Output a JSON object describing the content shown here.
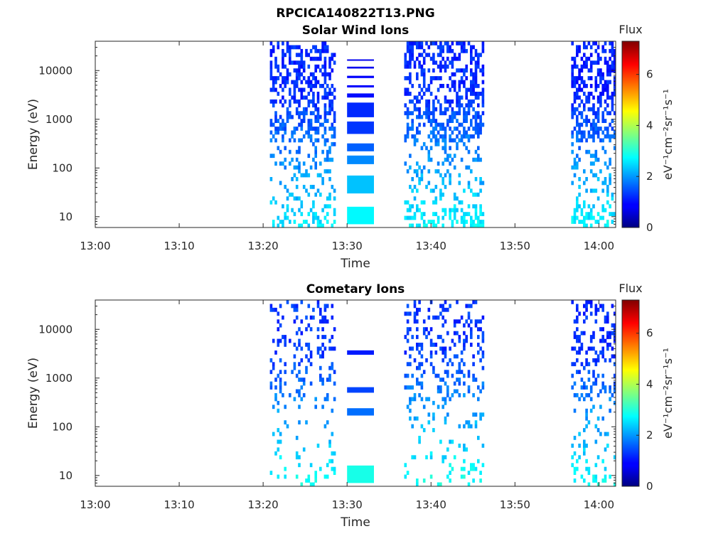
{
  "figure": {
    "filename_title": "RPCICA140822T13.PNG"
  },
  "chart_data": [
    {
      "type": "heatmap",
      "title": "Solar Wind Ions",
      "xlabel": "Time",
      "ylabel": "Energy (eV)",
      "x_ticks": [
        "13:00",
        "13:10",
        "13:20",
        "13:30",
        "13:40",
        "13:50",
        "14:00"
      ],
      "x_tick_minutes": [
        0,
        10,
        20,
        30,
        40,
        50,
        60
      ],
      "xlim_minutes": [
        0,
        62
      ],
      "y_scale": "log",
      "y_ticks": [
        "10",
        "100",
        "1000",
        "10000"
      ],
      "y_tick_values": [
        10,
        100,
        1000,
        10000
      ],
      "ylim": [
        6,
        40000
      ],
      "colorbar": {
        "label": "Flux",
        "units": "eV⁻¹cm⁻²sr⁻¹s⁻¹",
        "ticks": [
          "0",
          "2",
          "4",
          "6"
        ],
        "range": [
          0,
          7.3
        ],
        "colormap": "jet"
      },
      "segments": [
        {
          "t0": 20.8,
          "t1": 28.5,
          "density": 0.55,
          "low_flux": 2.6,
          "high_flux": 1.2
        },
        {
          "t0": 30.0,
          "t1": 33.2,
          "kind": "banded",
          "bands": [
            [
              7,
              16,
              2.7
            ],
            [
              30,
              70,
              2.3
            ],
            [
              120,
              180,
              1.9
            ],
            [
              220,
              320,
              1.6
            ],
            [
              500,
              900,
              1.3
            ],
            [
              1100,
              2200,
              1.2
            ],
            [
              2800,
              3400,
              1.0
            ],
            [
              4500,
              5000,
              0.9
            ],
            [
              7000,
              7800,
              0.9
            ],
            [
              11000,
              12000,
              0.8
            ],
            [
              16000,
              17000,
              0.8
            ]
          ]
        },
        {
          "t0": 36.8,
          "t1": 46.2,
          "density": 0.6,
          "low_flux": 2.7,
          "high_flux": 1.2
        },
        {
          "t0": 56.7,
          "t1": 61.8,
          "density": 0.6,
          "low_flux": 2.7,
          "high_flux": 1.1
        }
      ]
    },
    {
      "type": "heatmap",
      "title": "Cometary Ions",
      "xlabel": "Time",
      "ylabel": "Energy (eV)",
      "x_ticks": [
        "13:00",
        "13:10",
        "13:20",
        "13:30",
        "13:40",
        "13:50",
        "14:00"
      ],
      "x_tick_minutes": [
        0,
        10,
        20,
        30,
        40,
        50,
        60
      ],
      "xlim_minutes": [
        0,
        62
      ],
      "y_scale": "log",
      "y_ticks": [
        "10",
        "100",
        "1000",
        "10000"
      ],
      "y_tick_values": [
        10,
        100,
        1000,
        10000
      ],
      "ylim": [
        6,
        40000
      ],
      "colorbar": {
        "label": "Flux",
        "units": "eV⁻¹cm⁻²sr⁻¹s⁻¹",
        "ticks": [
          "0",
          "2",
          "4",
          "6"
        ],
        "range": [
          0,
          7.3
        ],
        "colormap": "jet"
      },
      "segments": [
        {
          "t0": 20.8,
          "t1": 28.5,
          "density": 0.22,
          "low_flux": 2.8,
          "high_flux": 1.3
        },
        {
          "t0": 30.0,
          "t1": 33.2,
          "kind": "banded",
          "bands": [
            [
              7,
              16,
              2.9
            ],
            [
              170,
              240,
              1.7
            ],
            [
              500,
              650,
              1.4
            ],
            [
              3000,
              3700,
              1.1
            ]
          ]
        },
        {
          "t0": 36.8,
          "t1": 46.2,
          "density": 0.3,
          "low_flux": 2.9,
          "high_flux": 1.3
        },
        {
          "t0": 56.7,
          "t1": 61.8,
          "density": 0.35,
          "low_flux": 2.8,
          "high_flux": 1.2
        }
      ]
    }
  ]
}
